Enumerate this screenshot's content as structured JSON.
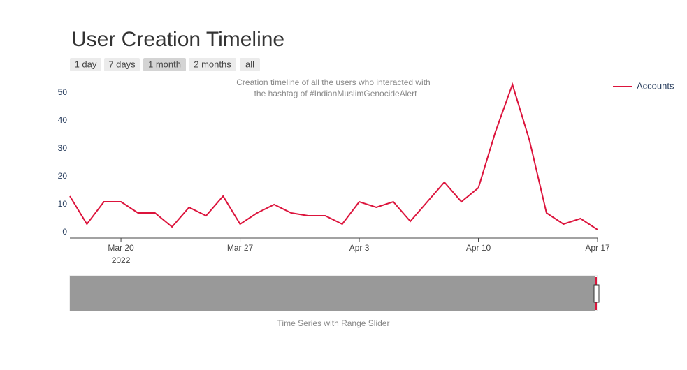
{
  "chart_data": {
    "type": "line",
    "title": "User Creation Timeline",
    "range_selector": {
      "buttons": [
        "1 day",
        "7 days",
        "1 month",
        "2 months",
        "all"
      ],
      "active": 2
    },
    "annotation": [
      "Creation timeline of all the users who interacted with",
      "the hashtag of #IndianMuslimGenocideAlert"
    ],
    "x_label": "Time Series with Range Slider",
    "x": [
      "2022-03-17",
      "2022-03-18",
      "2022-03-19",
      "2022-03-20",
      "2022-03-21",
      "2022-03-22",
      "2022-03-23",
      "2022-03-24",
      "2022-03-25",
      "2022-03-26",
      "2022-03-27",
      "2022-03-28",
      "2022-03-29",
      "2022-03-30",
      "2022-03-31",
      "2022-04-01",
      "2022-04-02",
      "2022-04-03",
      "2022-04-04",
      "2022-04-05",
      "2022-04-06",
      "2022-04-07",
      "2022-04-08",
      "2022-04-09",
      "2022-04-10",
      "2022-04-11",
      "2022-04-12",
      "2022-04-13",
      "2022-04-14",
      "2022-04-15",
      "2022-04-16",
      "2022-04-17"
    ],
    "series": [
      {
        "name": "Accounts",
        "color": "#dc143c",
        "values": [
          13,
          3,
          11,
          11,
          7,
          7,
          2,
          9,
          6,
          13,
          3,
          7,
          10,
          7,
          6,
          6,
          3,
          11,
          9,
          11,
          4,
          11,
          18,
          11,
          16,
          36,
          53,
          33,
          7,
          3,
          5,
          1
        ]
      }
    ],
    "xlim": [
      "2022-03-17",
      "2022-04-17"
    ],
    "xticks": [
      {
        "value": "2022-03-20",
        "label": [
          "Mar 20",
          "2022"
        ]
      },
      {
        "value": "2022-03-27",
        "label": "Mar 27"
      },
      {
        "value": "2022-04-03",
        "label": "Apr 3"
      },
      {
        "value": "2022-04-10",
        "label": "Apr 10"
      },
      {
        "value": "2022-04-17",
        "label": "Apr 17"
      }
    ],
    "ylim": [
      -2,
      55
    ],
    "yticks": [
      0,
      10,
      20,
      30,
      40,
      50
    ],
    "grid": false,
    "legend": "top-right"
  }
}
